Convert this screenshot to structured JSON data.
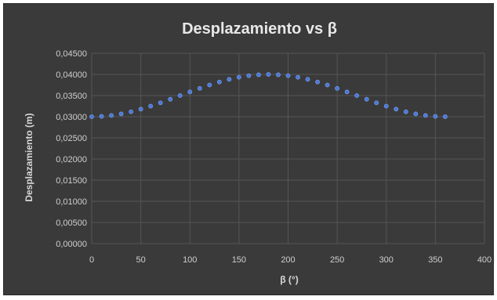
{
  "chart_data": {
    "type": "scatter",
    "title": "Desplazamiento vs β",
    "xlabel": "β (°)",
    "ylabel": "Desplazamiento (m)",
    "xlim": [
      0,
      400
    ],
    "ylim": [
      0,
      0.045
    ],
    "x_ticks": [
      "0",
      "50",
      "100",
      "150",
      "200",
      "250",
      "300",
      "350",
      "400"
    ],
    "y_ticks": [
      "0,00000",
      "0,00500",
      "0,01000",
      "0,01500",
      "0,02000",
      "0,02500",
      "0,03000",
      "0,03500",
      "0,04000",
      "0,04500"
    ],
    "grid": true,
    "marker_color": "#4a78d8",
    "background_color": "#3a3a3a",
    "series": [
      {
        "x": [
          0,
          10,
          20,
          30,
          40,
          50,
          60,
          70,
          80,
          90,
          100,
          110,
          120,
          130,
          140,
          150,
          160,
          170,
          180,
          190,
          200,
          210,
          220,
          230,
          240,
          250,
          260,
          270,
          280,
          290,
          300,
          310,
          320,
          330,
          340,
          350,
          360
        ],
        "y": [
          0.03,
          0.03008,
          0.0303,
          0.03067,
          0.03117,
          0.03179,
          0.0325,
          0.03329,
          0.03413,
          0.035,
          0.03587,
          0.03671,
          0.0375,
          0.03821,
          0.03883,
          0.03933,
          0.0397,
          0.03992,
          0.04,
          0.03992,
          0.0397,
          0.03933,
          0.03883,
          0.03821,
          0.0375,
          0.03671,
          0.03587,
          0.035,
          0.03413,
          0.03329,
          0.0325,
          0.03179,
          0.03117,
          0.03067,
          0.0303,
          0.03008,
          0.03
        ]
      }
    ]
  }
}
